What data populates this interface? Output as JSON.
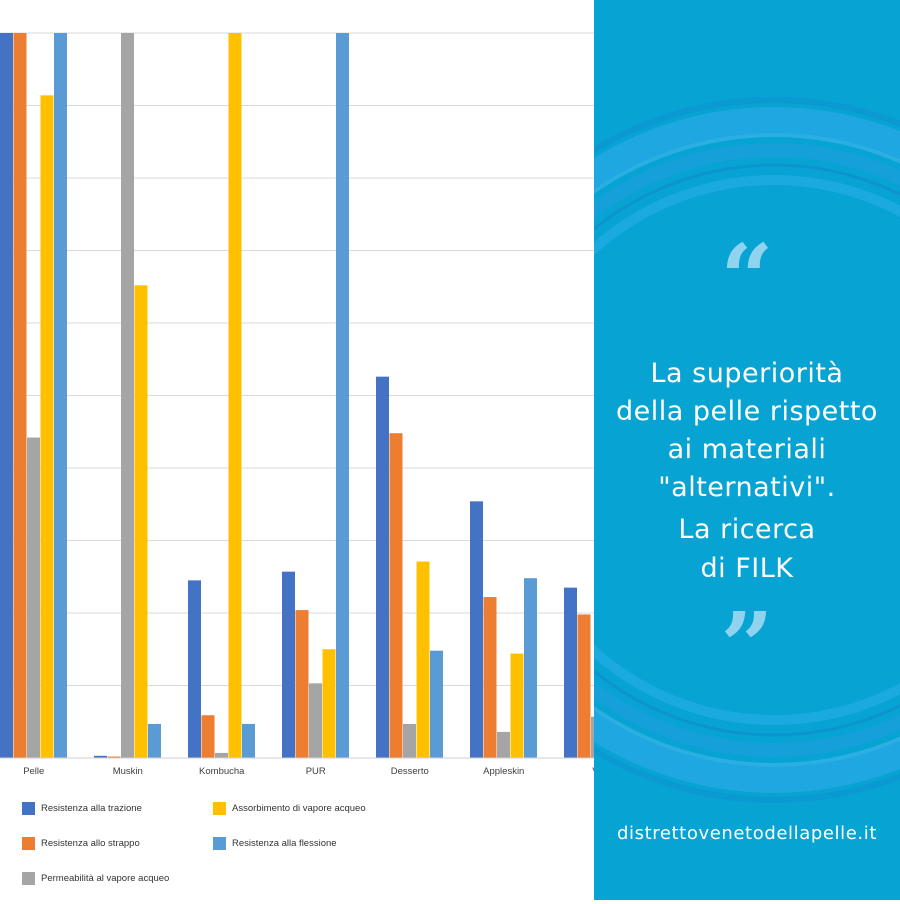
{
  "chart_data": {
    "type": "bar",
    "categories": [
      "Pelle",
      "Muskin",
      "Kombucha",
      "PUR",
      "Desserto",
      "Appleskin",
      "Ve"
    ],
    "ylim": [
      0,
      100
    ],
    "grid": true,
    "legend_position": "bottom",
    "series": [
      {
        "name": "Resistenza alla trazione",
        "color": "#4472c4",
        "values": [
          100,
          0.3,
          24.5,
          25.7,
          52.6,
          35.4,
          23.5
        ]
      },
      {
        "name": "Resistenza allo strappo",
        "color": "#ed7d31",
        "values": [
          100,
          0.2,
          5.9,
          20.4,
          44.8,
          22.2,
          19.8
        ]
      },
      {
        "name": "Permeabilità al vapore acqueo",
        "color": "#a5a5a5",
        "values": [
          44.2,
          100,
          0.7,
          10.3,
          4.7,
          3.6,
          5.7
        ]
      },
      {
        "name": "Assorbimento di vapore acqueo",
        "color": "#ffc000",
        "values": [
          91.4,
          65.2,
          100,
          15.0,
          27.1,
          14.4,
          null
        ]
      },
      {
        "name": "Resistenza alla flessione",
        "color": "#5b9bd5",
        "values": [
          100,
          4.7,
          4.7,
          100,
          14.8,
          24.8,
          null
        ]
      }
    ]
  },
  "panel": {
    "background": "#06a3d3",
    "quote_open": "“",
    "quote_close": "”",
    "quote_lines": [
      "La superiorità",
      "della pelle rispetto",
      "ai materiali",
      "\"alternativi\".",
      "La ricerca",
      "di FILK"
    ],
    "website": "distrettovenetodellapelle.it"
  }
}
